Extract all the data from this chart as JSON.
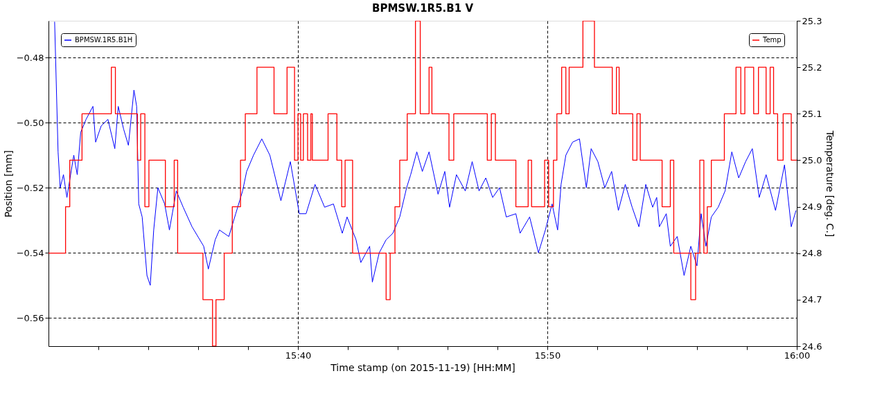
{
  "chart_data": {
    "type": "line",
    "title": "BPMSW.1R5.B1 V",
    "xlabel": "Time stamp (on 2015-11-19) [HH:MM]",
    "ylabel": "Position [mm]",
    "y2label": "Temperature [deg. C.]",
    "xlim": [
      15.5,
      16.0
    ],
    "xticks": [
      {
        "value": 15.5333,
        "label": null
      },
      {
        "value": 15.5667,
        "label": null
      },
      {
        "value": 15.6,
        "label": null
      },
      {
        "value": 15.6333,
        "label": null
      },
      {
        "value": 15.6667,
        "label": "15:40"
      },
      {
        "value": 15.7,
        "label": null
      },
      {
        "value": 15.7333,
        "label": null
      },
      {
        "value": 15.7667,
        "label": null
      },
      {
        "value": 15.8,
        "label": null
      },
      {
        "value": 15.8333,
        "label": "15:50"
      },
      {
        "value": 15.8667,
        "label": null
      },
      {
        "value": 15.9,
        "label": null
      },
      {
        "value": 15.9333,
        "label": null
      },
      {
        "value": 15.9667,
        "label": null
      },
      {
        "value": 16.0,
        "label": "16:00"
      }
    ],
    "ylim": [
      -0.5687,
      -0.4687
    ],
    "yticks": [
      {
        "value": -0.56,
        "label": "−0.56"
      },
      {
        "value": -0.54,
        "label": "−0.54"
      },
      {
        "value": -0.52,
        "label": "−0.52"
      },
      {
        "value": -0.5,
        "label": "−0.50"
      },
      {
        "value": -0.48,
        "label": "−0.48"
      }
    ],
    "y2lim": [
      24.6,
      25.3
    ],
    "y2ticks": [
      {
        "value": 24.6,
        "label": "24.6"
      },
      {
        "value": 24.7,
        "label": "24.7"
      },
      {
        "value": 24.8,
        "label": "24.8"
      },
      {
        "value": 24.9,
        "label": "24.9"
      },
      {
        "value": 25.0,
        "label": "25.0"
      },
      {
        "value": 25.1,
        "label": "25.1"
      },
      {
        "value": 25.2,
        "label": "25.2"
      },
      {
        "value": 25.3,
        "label": "25.3"
      }
    ],
    "grid": true,
    "legend": "top",
    "series": [
      {
        "name": "BPMSW.1R5.B1H",
        "color": "#0000ff",
        "x": [
          15.5041,
          15.5064,
          15.5078,
          15.51,
          15.5123,
          15.5169,
          15.5192,
          15.5215,
          15.5251,
          15.5297,
          15.5315,
          15.5352,
          15.5397,
          15.5443,
          15.5466,
          15.5502,
          15.5534,
          15.5571,
          15.5589,
          15.5603,
          15.5626,
          15.5658,
          15.568,
          15.5703,
          15.5731,
          15.5776,
          15.5808,
          15.5854,
          15.59,
          15.5959,
          15.6037,
          15.6068,
          15.6114,
          15.6142,
          15.6205,
          15.6251,
          15.6297,
          15.6324,
          15.637,
          15.6425,
          15.6479,
          15.6553,
          15.6616,
          15.6676,
          15.6721,
          15.6781,
          15.6845,
          15.6904,
          15.6963,
          15.6995,
          15.7055,
          15.7087,
          15.7146,
          15.7164,
          15.721,
          15.7256,
          15.7301,
          15.7347,
          15.7393,
          15.742,
          15.7461,
          15.7498,
          15.7543,
          15.7603,
          15.7648,
          15.768,
          15.7726,
          15.7785,
          15.7831,
          15.7877,
          15.7922,
          15.7968,
          15.8014,
          15.8059,
          15.8123,
          15.8151,
          15.8215,
          15.8274,
          15.832,
          15.8365,
          15.8402,
          15.8425,
          15.8457,
          15.8502,
          15.8548,
          15.8594,
          15.8626,
          15.8671,
          15.8717,
          15.8763,
          15.8808,
          15.8854,
          15.89,
          15.8945,
          15.8991,
          15.9037,
          15.9064,
          15.9082,
          15.9128,
          15.9155,
          15.9201,
          15.9247,
          15.9292,
          15.9333,
          15.9361,
          15.9393,
          15.9429,
          15.9475,
          15.9521,
          15.9566,
          15.9612,
          15.9658,
          15.9703,
          15.9749,
          15.9795,
          15.9858,
          15.9918,
          15.9963,
          15.9995
        ],
        "values": [
          -0.469,
          -0.509,
          -0.52,
          -0.516,
          -0.523,
          -0.51,
          -0.516,
          -0.503,
          -0.499,
          -0.495,
          -0.506,
          -0.501,
          -0.499,
          -0.508,
          -0.495,
          -0.502,
          -0.507,
          -0.49,
          -0.495,
          -0.525,
          -0.529,
          -0.547,
          -0.55,
          -0.533,
          -0.52,
          -0.525,
          -0.533,
          -0.521,
          -0.526,
          -0.532,
          -0.538,
          -0.545,
          -0.536,
          -0.533,
          -0.535,
          -0.528,
          -0.521,
          -0.515,
          -0.51,
          -0.505,
          -0.51,
          -0.524,
          -0.512,
          -0.528,
          -0.528,
          -0.519,
          -0.526,
          -0.525,
          -0.534,
          -0.529,
          -0.536,
          -0.543,
          -0.538,
          -0.549,
          -0.54,
          -0.536,
          -0.534,
          -0.529,
          -0.52,
          -0.516,
          -0.509,
          -0.515,
          -0.509,
          -0.522,
          -0.515,
          -0.526,
          -0.516,
          -0.521,
          -0.512,
          -0.521,
          -0.517,
          -0.523,
          -0.52,
          -0.529,
          -0.528,
          -0.534,
          -0.529,
          -0.54,
          -0.533,
          -0.525,
          -0.533,
          -0.519,
          -0.51,
          -0.506,
          -0.505,
          -0.52,
          -0.508,
          -0.512,
          -0.52,
          -0.515,
          -0.527,
          -0.519,
          -0.526,
          -0.532,
          -0.519,
          -0.526,
          -0.523,
          -0.532,
          -0.528,
          -0.538,
          -0.535,
          -0.547,
          -0.538,
          -0.544,
          -0.528,
          -0.538,
          -0.529,
          -0.526,
          -0.521,
          -0.509,
          -0.517,
          -0.512,
          -0.508,
          -0.523,
          -0.516,
          -0.527,
          -0.513,
          -0.532,
          -0.527
        ]
      },
      {
        "name": "Temp",
        "color": "#ff0000",
        "type": "step",
        "axis": "y2",
        "x": [
          15.5,
          15.5114,
          15.5142,
          15.5224,
          15.542,
          15.5447,
          15.5594,
          15.5616,
          15.5644,
          15.5671,
          15.5781,
          15.584,
          15.5863,
          15.6032,
          15.6096,
          15.6119,
          15.6174,
          15.6228,
          15.6283,
          15.6315,
          15.6393,
          15.6507,
          15.6594,
          15.6644,
          15.6667,
          15.6685,
          15.6703,
          15.6731,
          15.6753,
          15.6763,
          15.6868,
          15.6927,
          15.6959,
          15.6982,
          15.7032,
          15.7256,
          15.7283,
          15.7315,
          15.7347,
          15.7397,
          15.7452,
          15.7484,
          15.7543,
          15.7562,
          15.7676,
          15.7708,
          15.7932,
          15.7959,
          15.7986,
          15.8123,
          15.8205,
          15.8228,
          15.8315,
          15.8342,
          15.8374,
          15.8397,
          15.8429,
          15.8457,
          15.8479,
          15.8571,
          15.8648,
          15.8767,
          15.8795,
          15.8813,
          15.8904,
          15.8932,
          15.8954,
          15.91,
          15.9155,
          15.9178,
          15.9292,
          15.9324,
          15.9352,
          15.9379,
          15.9402,
          15.9429,
          15.9516,
          15.9594,
          15.9626,
          15.9653,
          15.9712,
          15.9744,
          15.9795,
          15.9822,
          15.9845,
          15.9872,
          15.9909,
          15.9963,
          16.0
        ],
        "values": [
          24.8,
          24.9,
          25.0,
          25.1,
          25.2,
          25.1,
          25.0,
          25.1,
          24.9,
          25.0,
          24.9,
          25.0,
          24.8,
          24.7,
          24.6,
          24.7,
          24.8,
          24.9,
          25.0,
          25.1,
          25.2,
          25.1,
          25.2,
          25.0,
          25.1,
          25.0,
          25.1,
          25.0,
          25.1,
          25.0,
          25.1,
          25.0,
          24.9,
          25.0,
          24.8,
          24.7,
          24.8,
          24.9,
          25.0,
          25.1,
          25.3,
          25.1,
          25.2,
          25.1,
          25.0,
          25.1,
          25.0,
          25.1,
          25.0,
          24.9,
          25.0,
          24.9,
          25.0,
          24.9,
          25.0,
          25.1,
          25.2,
          25.1,
          25.2,
          25.3,
          25.2,
          25.1,
          25.2,
          25.1,
          25.0,
          25.1,
          25.0,
          24.9,
          25.0,
          24.8,
          24.7,
          24.8,
          25.0,
          24.8,
          24.9,
          25.0,
          25.1,
          25.2,
          25.1,
          25.2,
          25.1,
          25.2,
          25.1,
          25.2,
          25.1,
          25.0,
          25.1,
          25.0,
          25.0
        ]
      }
    ]
  }
}
